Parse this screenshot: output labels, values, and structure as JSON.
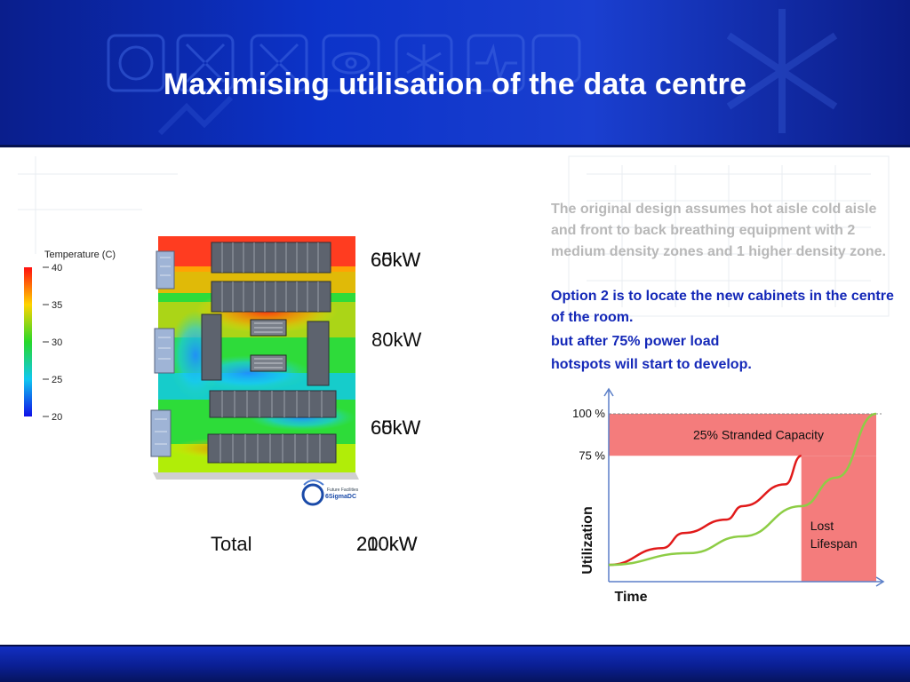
{
  "title": "Maximising utilisation of the data centre",
  "thermal_map": {
    "legend_title": "Temperature (C)",
    "legend_ticks": [
      "40",
      "35",
      "30",
      "25",
      "20"
    ],
    "logo_text": "6SigmaDC",
    "logo_subtext": "Future Facilities"
  },
  "power_labels": {
    "row1_a": "65kW",
    "row1_b": "60kW",
    "middle": "80kW",
    "row3_a": "65kW",
    "row3_b": "60kW",
    "total_label": "Total",
    "total_a": "210kW",
    "total_b": "200kW"
  },
  "description": {
    "original": "The original design assumes hot aisle cold aisle and front to back breathing equipment with 2 medium density zones and 1 higher density zone.",
    "option2": "Option 2 is to locate the new cabinets in the centre of the room.",
    "after75": "but after 75% power load",
    "hotspots": "hotspots will start to develop."
  },
  "chart_data": {
    "type": "line",
    "title": "",
    "xlabel": "Time",
    "ylabel": "Utilization",
    "y_ticks": [
      "100 %",
      "75 %"
    ],
    "ylim": [
      0,
      100
    ],
    "series": [
      {
        "name": "",
        "color": "#e11a1a",
        "x": [
          0,
          0.2,
          0.28,
          0.44,
          0.5,
          0.66,
          0.72
        ],
        "y": [
          10,
          20,
          29,
          37,
          45,
          58,
          75
        ]
      },
      {
        "name": "",
        "color": "#8dcd45",
        "x": [
          0,
          0.3,
          0.5,
          0.72,
          0.85,
          1.0
        ],
        "y": [
          10,
          17,
          27,
          45,
          62,
          100
        ]
      }
    ],
    "regions": [
      {
        "label": "25% Stranded Capacity",
        "y_range": [
          75,
          100
        ],
        "color": "#f47c7c"
      },
      {
        "label_lines": [
          "Lost",
          "Lifespan"
        ],
        "x_from": 0.72,
        "color": "#f47c7c"
      }
    ]
  }
}
